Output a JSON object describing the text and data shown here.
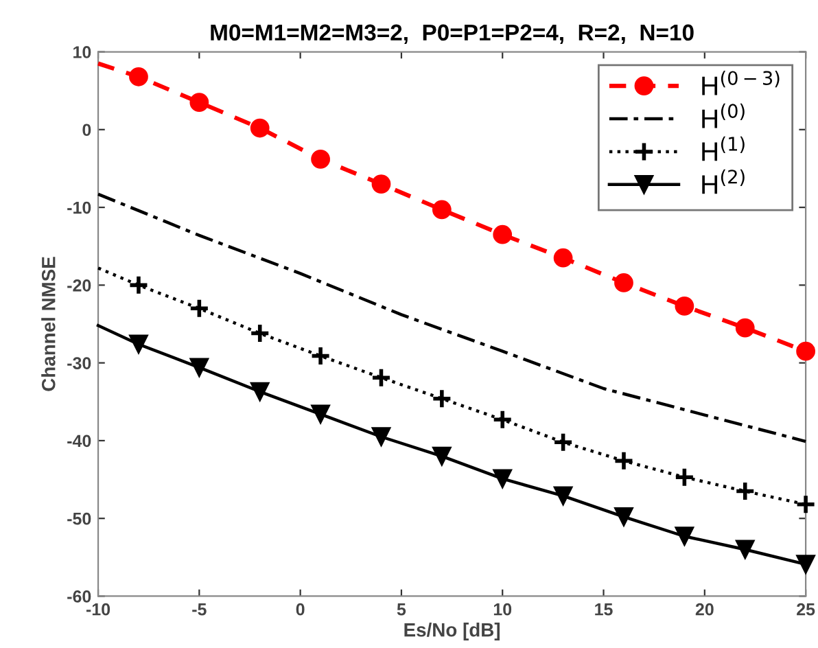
{
  "chart_data": {
    "type": "line",
    "title": "M0=M1=M2=M3=2,  P0=P1=P2=4,  R=2,  N=10",
    "xlabel": "Es/No [dB]",
    "ylabel": "Channel NMSE",
    "xlim": [
      -10,
      25
    ],
    "xticks": [
      -10,
      -5,
      0,
      5,
      10,
      15,
      20,
      25
    ],
    "ylim": [
      -60,
      10
    ],
    "yticks": [
      -60,
      -50,
      -40,
      -30,
      -20,
      -10,
      0,
      10
    ],
    "grid": false,
    "legend": "top right",
    "series": [
      {
        "name": "H$^{(0−3)}$",
        "color": "#ff0000",
        "marker": "circle",
        "line_style": "dashed",
        "x": [
          -10,
          -8,
          -5,
          -2,
          1,
          4,
          7,
          10,
          13,
          16,
          19,
          22,
          25
        ],
        "values": [
          8.5,
          6.8,
          3.5,
          0.2,
          -3.8,
          -7,
          -10.3,
          -13.5,
          -16.5,
          -19.7,
          -22.7,
          -25.5,
          -28.5
        ]
      },
      {
        "name": "H$^{(0)}$",
        "color": "#000000",
        "marker": "none",
        "line_style": "dashdot",
        "x": [
          -10,
          -5,
          0,
          5,
          10,
          15,
          20,
          25
        ],
        "values": [
          -8.3,
          -13.6,
          -18.5,
          -23.8,
          -28.5,
          -33.3,
          -36.7,
          -40.1
        ]
      },
      {
        "name": "H$^{(1)}$",
        "color": "#000000",
        "marker": "cross",
        "line_style": "dotted",
        "x": [
          -10,
          -8,
          -5,
          -2,
          1,
          4,
          7,
          10,
          13,
          16,
          19,
          22,
          25
        ],
        "values": [
          -17.8,
          -20,
          -23,
          -26.2,
          -29.1,
          -31.9,
          -34.6,
          -37.3,
          -40.2,
          -42.6,
          -44.7,
          -46.5,
          -48.2
        ]
      },
      {
        "name": "H$^{(2)}$",
        "color": "#000000",
        "marker": "triangle",
        "line_style": "solid",
        "x": [
          -10,
          -8,
          -5,
          -2,
          1,
          4,
          7,
          10,
          13,
          16,
          19,
          22,
          25
        ],
        "values": [
          -25.2,
          -27.6,
          -30.6,
          -33.7,
          -36.6,
          -39.5,
          -42,
          -44.9,
          -47.1,
          -49.8,
          -52.3,
          -54,
          -55.9
        ]
      }
    ]
  }
}
